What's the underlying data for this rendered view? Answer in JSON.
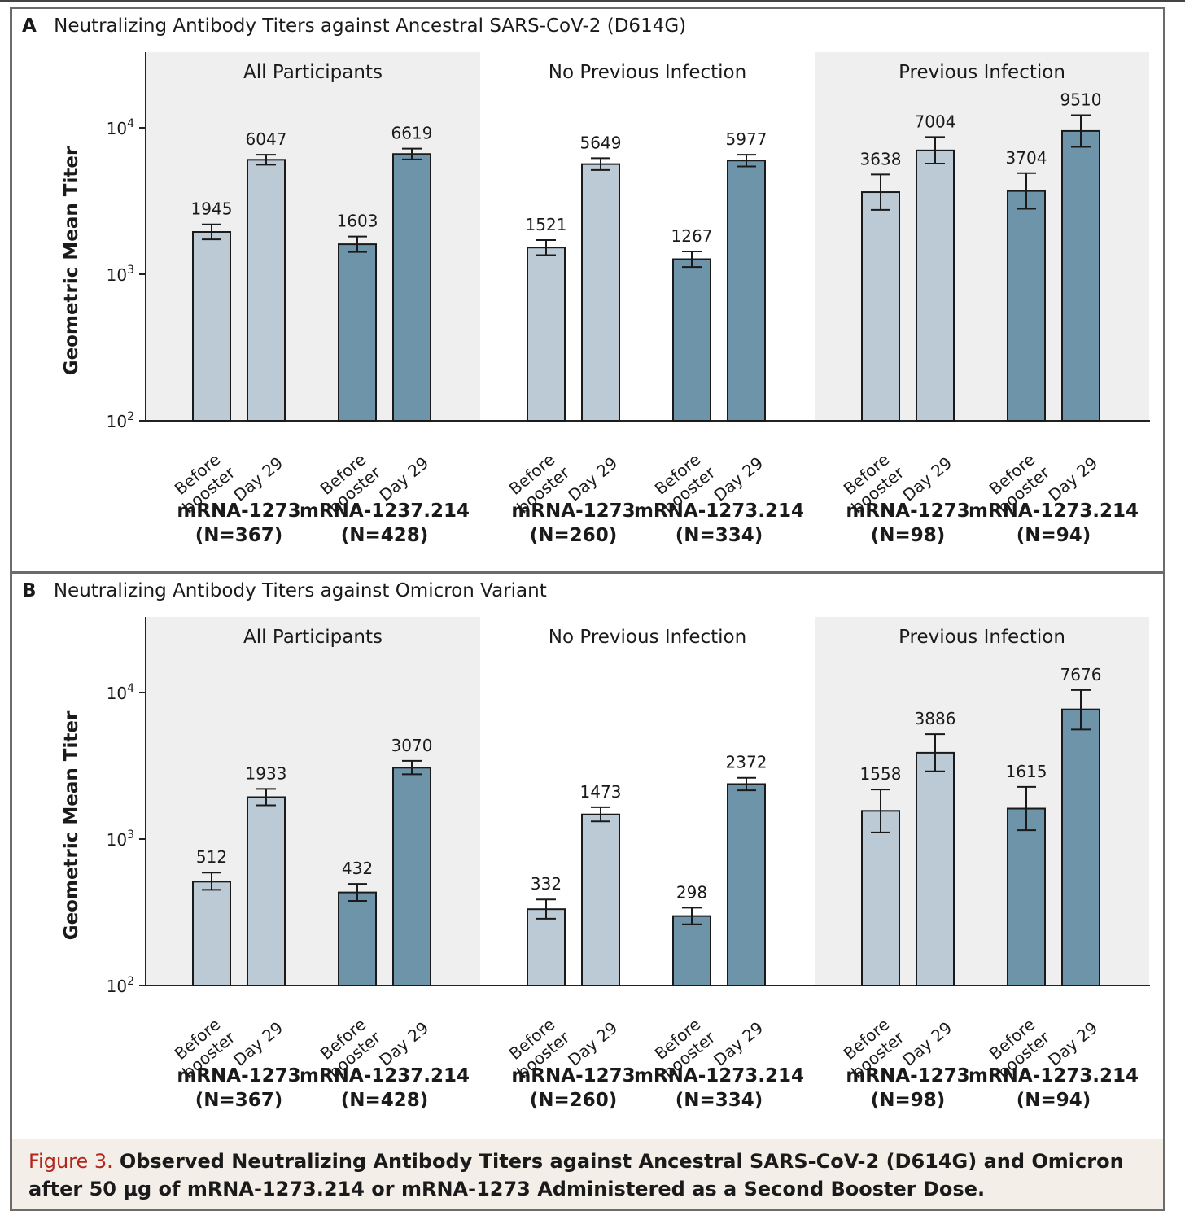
{
  "colors": {
    "light_bar": "#bccad5",
    "dark_bar": "#6e94aa",
    "shade": "#efefef",
    "caption_label": "#b3261e"
  },
  "panels": [
    {
      "letter": "A",
      "title": "Neutralizing Antibody Titers against Ancestral SARS-CoV-2 (D614G)",
      "ylabel": "Geometric Mean Titer",
      "groups": [
        {
          "title": "All Participants",
          "shaded": true,
          "vaccines": [
            {
              "name": "mRNA-1273",
              "n": "(N=367)",
              "dark": false,
              "values": [
                1945,
                6047
              ],
              "ci": [
                [
                  1730,
                  2190
                ],
                [
                  5600,
                  6550
                ]
              ]
            },
            {
              "name": "mRNA-1237.214",
              "n": "(N=428)",
              "dark": true,
              "values": [
                1603,
                6619
              ],
              "ci": [
                [
                  1420,
                  1810
                ],
                [
                  6080,
                  7200
                ]
              ]
            }
          ]
        },
        {
          "title": "No Previous Infection",
          "shaded": false,
          "vaccines": [
            {
              "name": "mRNA-1273",
              "n": "(N=260)",
              "dark": false,
              "values": [
                1521,
                5649
              ],
              "ci": [
                [
                  1350,
                  1710
                ],
                [
                  5150,
                  6200
                ]
              ]
            },
            {
              "name": "mRNA-1273.214",
              "n": "(N=334)",
              "dark": true,
              "values": [
                1267,
                5977
              ],
              "ci": [
                [
                  1120,
                  1430
                ],
                [
                  5450,
                  6550
                ]
              ]
            }
          ]
        },
        {
          "title": "Previous Infection",
          "shaded": true,
          "vaccines": [
            {
              "name": "mRNA-1273",
              "n": "(N=98)",
              "dark": false,
              "values": [
                3638,
                7004
              ],
              "ci": [
                [
                  2750,
                  4800
                ],
                [
                  5700,
                  8650
                ]
              ]
            },
            {
              "name": "mRNA-1273.214",
              "n": "(N=94)",
              "dark": true,
              "values": [
                3704,
                9510
              ],
              "ci": [
                [
                  2800,
                  4900
                ],
                [
                  7400,
                  12200
                ]
              ]
            }
          ]
        }
      ]
    },
    {
      "letter": "B",
      "title": "Neutralizing Antibody Titers against Omicron Variant",
      "ylabel": "Geometric Mean Titer",
      "groups": [
        {
          "title": "All Participants",
          "shaded": true,
          "vaccines": [
            {
              "name": "mRNA-1273",
              "n": "(N=367)",
              "dark": false,
              "values": [
                512,
                1933
              ],
              "ci": [
                [
                  450,
                  590
                ],
                [
                  1700,
                  2200
                ]
              ]
            },
            {
              "name": "mRNA-1237.214",
              "n": "(N=428)",
              "dark": true,
              "values": [
                432,
                3070
              ],
              "ci": [
                [
                  378,
                  494
                ],
                [
                  2770,
                  3420
                ]
              ]
            }
          ]
        },
        {
          "title": "No Previous Infection",
          "shaded": false,
          "vaccines": [
            {
              "name": "mRNA-1273",
              "n": "(N=260)",
              "dark": false,
              "values": [
                332,
                1473
              ],
              "ci": [
                [
                  286,
                  387
                ],
                [
                  1320,
                  1650
                ]
              ]
            },
            {
              "name": "mRNA-1273.214",
              "n": "(N=334)",
              "dark": true,
              "values": [
                298,
                2372
              ],
              "ci": [
                [
                  262,
                  340
                ],
                [
                  2150,
                  2620
                ]
              ]
            }
          ]
        },
        {
          "title": "Previous Infection",
          "shaded": true,
          "vaccines": [
            {
              "name": "mRNA-1273",
              "n": "(N=98)",
              "dark": false,
              "values": [
                1558,
                3886
              ],
              "ci": [
                [
                  1110,
                  2180
                ],
                [
                  2900,
                  5200
                ]
              ]
            },
            {
              "name": "mRNA-1273.214",
              "n": "(N=94)",
              "dark": true,
              "values": [
                1615,
                7676
              ],
              "ci": [
                [
                  1150,
                  2270
                ],
                [
                  5600,
                  10400
                ]
              ]
            }
          ]
        }
      ]
    }
  ],
  "bar_labels": [
    "Before booster",
    "Day 29"
  ],
  "caption": {
    "label": "Figure 3.",
    "text": "Observed Neutralizing Antibody Titers against Ancestral SARS-CoV-2 (D614G) and Omicron after 50 μg of mRNA-1273.214 or mRNA-1273 Administered as a Second Booster Dose."
  },
  "chart_data": [
    {
      "type": "bar",
      "title": "Neutralizing Antibody Titers against Ancestral SARS-CoV-2 (D614G)",
      "ylabel": "Geometric Mean Titer",
      "yscale": "log",
      "ylim": [
        100,
        30000
      ],
      "yticks": [
        "10^2",
        "10^3",
        "10^4"
      ],
      "categories": [
        "Before booster",
        "Day 29"
      ],
      "series": [
        {
          "name": "All Participants mRNA-1273 (N=367)",
          "values": [
            1945,
            6047
          ]
        },
        {
          "name": "All Participants mRNA-1237.214 (N=428)",
          "values": [
            1603,
            6619
          ]
        },
        {
          "name": "No Previous Infection mRNA-1273 (N=260)",
          "values": [
            1521,
            5649
          ]
        },
        {
          "name": "No Previous Infection mRNA-1273.214 (N=334)",
          "values": [
            1267,
            5977
          ]
        },
        {
          "name": "Previous Infection mRNA-1273 (N=98)",
          "values": [
            3638,
            7004
          ]
        },
        {
          "name": "Previous Infection mRNA-1273.214 (N=94)",
          "values": [
            3704,
            9510
          ]
        }
      ]
    },
    {
      "type": "bar",
      "title": "Neutralizing Antibody Titers against Omicron Variant",
      "ylabel": "Geometric Mean Titer",
      "yscale": "log",
      "ylim": [
        100,
        30000
      ],
      "yticks": [
        "10^2",
        "10^3",
        "10^4"
      ],
      "categories": [
        "Before booster",
        "Day 29"
      ],
      "series": [
        {
          "name": "All Participants mRNA-1273 (N=367)",
          "values": [
            512,
            1933
          ]
        },
        {
          "name": "All Participants mRNA-1237.214 (N=428)",
          "values": [
            432,
            3070
          ]
        },
        {
          "name": "No Previous Infection mRNA-1273 (N=260)",
          "values": [
            332,
            1473
          ]
        },
        {
          "name": "No Previous Infection mRNA-1273.214 (N=334)",
          "values": [
            298,
            2372
          ]
        },
        {
          "name": "Previous Infection mRNA-1273 (N=98)",
          "values": [
            1558,
            3886
          ]
        },
        {
          "name": "Previous Infection mRNA-1273.214 (N=94)",
          "values": [
            1615,
            7676
          ]
        }
      ]
    }
  ]
}
